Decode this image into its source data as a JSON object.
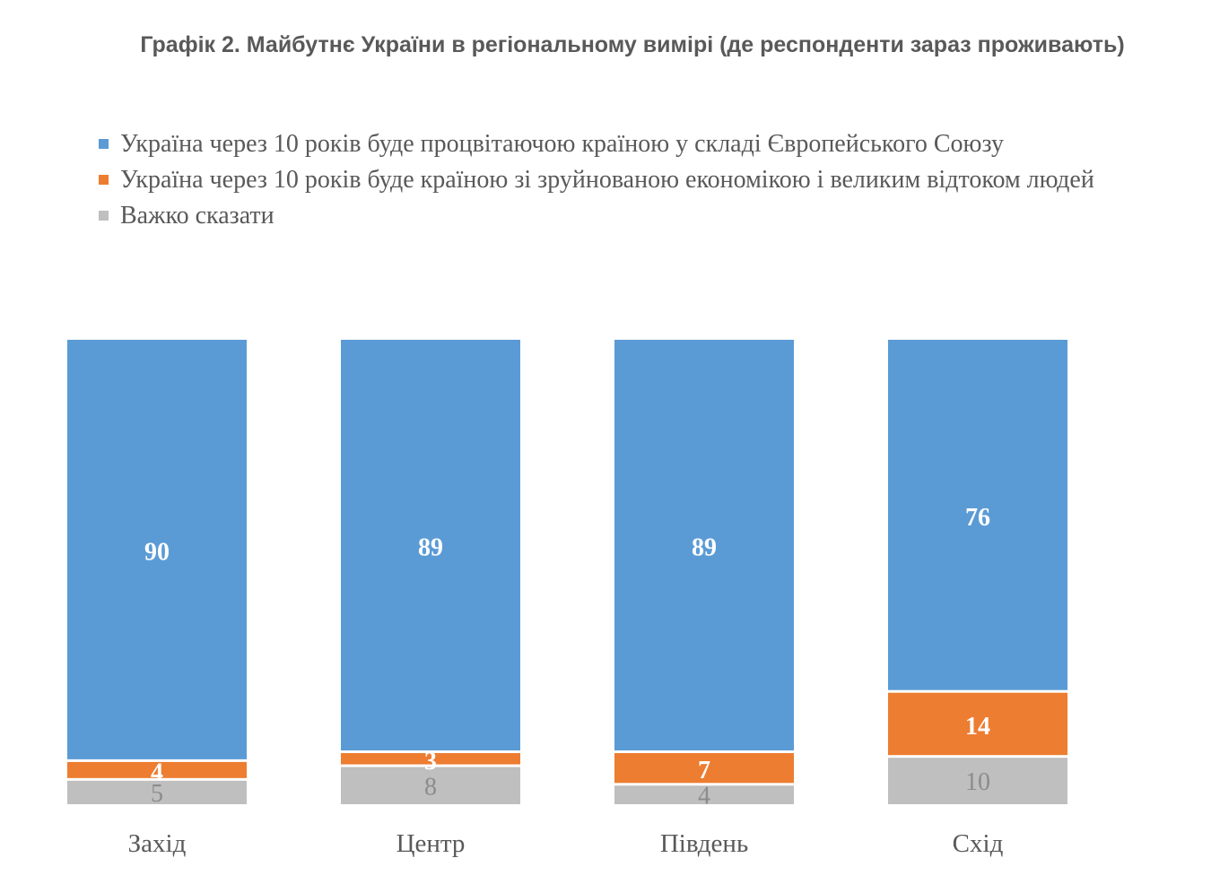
{
  "chart_data": {
    "type": "bar",
    "stacked": true,
    "title": "Графік 2. Майбутнє України в регіональному вимірі (де респонденти зараз проживають)",
    "categories": [
      "Захід",
      "Центр",
      "Південь",
      "Схід"
    ],
    "series": [
      {
        "name": "Україна через 10 років буде процвітаючою країною у складі Європейського Союзу",
        "color": "#5b9bd5",
        "label_color": "#ffffff",
        "values": [
          90,
          89,
          89,
          76
        ]
      },
      {
        "name": "Україна через 10 років буде країною зі зруйнованою економікою і великим відтоком людей",
        "color": "#ed7d31",
        "label_color": "#ffffff",
        "values": [
          4,
          3,
          7,
          14
        ]
      },
      {
        "name": "Важко сказати",
        "color": "#bfbfbf",
        "label_color": "#8c8c8c",
        "values": [
          5,
          8,
          4,
          10
        ]
      }
    ],
    "legend_position": "top-left",
    "grid": false
  }
}
